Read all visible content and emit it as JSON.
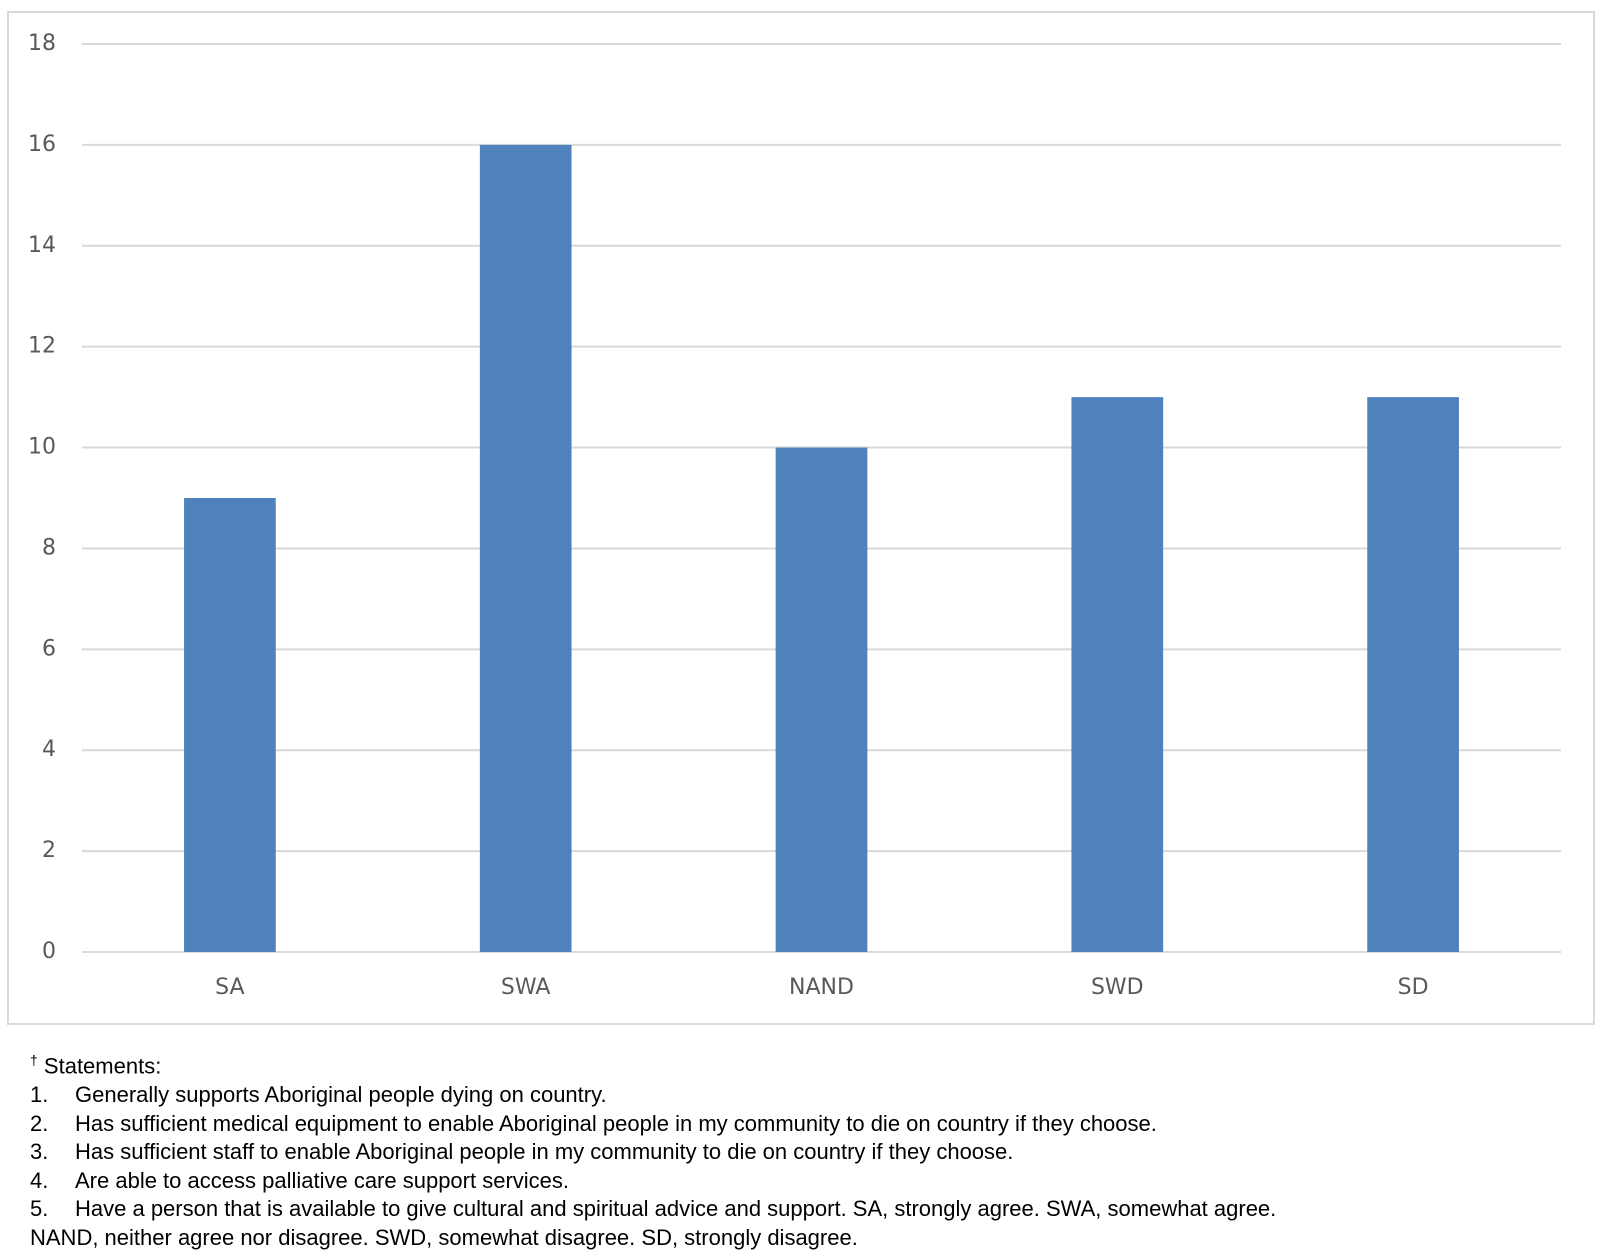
{
  "chart_data": {
    "type": "bar",
    "categories": [
      "SA",
      "SWA",
      "NAND",
      "SWD",
      "SD"
    ],
    "values": [
      9,
      16,
      10,
      11,
      11
    ],
    "color": "#4f81bd",
    "ylim": [
      0,
      18
    ],
    "yticks": [
      0,
      2,
      4,
      6,
      8,
      10,
      12,
      14,
      16,
      18
    ],
    "grid": true
  },
  "footnote": {
    "marker": "†",
    "heading": "Statements:",
    "items": [
      {
        "number": "1.",
        "text": "Generally supports Aboriginal people dying on country."
      },
      {
        "number": "2.",
        "text": "Has sufficient medical equipment to enable Aboriginal people in my community to die on country if they choose."
      },
      {
        "number": "3.",
        "text": "Has sufficient staff to enable Aboriginal people in my community to die on country if they choose."
      },
      {
        "number": "4.",
        "text": "Are able to access palliative care support services."
      },
      {
        "number": "5.",
        "text": "Have a person that is available to give cultural and spiritual advice and support. SA, strongly agree. SWA, somewhat agree."
      }
    ],
    "abbreviations": "NAND, neither agree nor disagree. SWD, somewhat disagree. SD, strongly disagree."
  }
}
